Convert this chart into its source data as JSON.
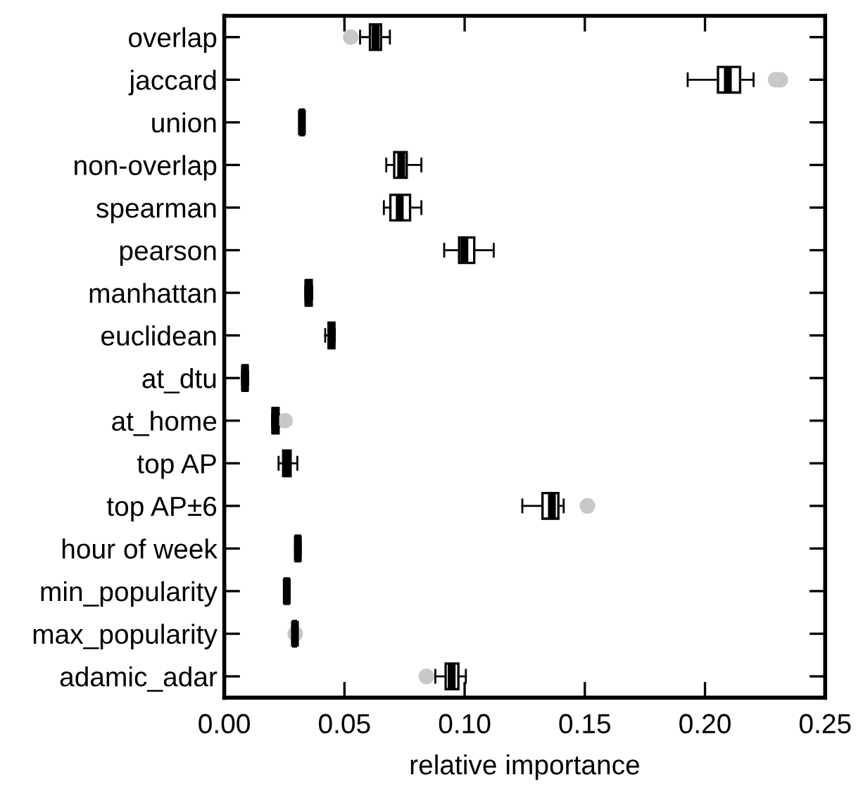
{
  "chart_data": {
    "type": "box",
    "orientation": "horizontal",
    "xlabel": "relative importance",
    "categories": [
      "overlap",
      "jaccard",
      "union",
      "non-overlap",
      "spearman",
      "pearson",
      "manhattan",
      "euclidean",
      "at_dtu",
      "at_home",
      "top AP",
      "top AP±6",
      "hour of week",
      "min_popularity",
      "max_popularity",
      "adamic_adar"
    ],
    "boxes": [
      {
        "low": 0.0565,
        "q1": 0.0606,
        "median": 0.0629,
        "q3": 0.0652,
        "high": 0.0689,
        "outliers": [
          0.0526
        ]
      },
      {
        "low": 0.1928,
        "q1": 0.2054,
        "median": 0.2095,
        "q3": 0.2146,
        "high": 0.2202,
        "outliers": [
          0.2294,
          0.2313
        ]
      },
      {
        "low": 0.0315,
        "q1": 0.0317,
        "median": 0.0323,
        "q3": 0.033,
        "high": 0.0332
      },
      {
        "low": 0.0674,
        "q1": 0.0707,
        "median": 0.0736,
        "q3": 0.0759,
        "high": 0.082
      },
      {
        "low": 0.0664,
        "q1": 0.0691,
        "median": 0.073,
        "q3": 0.0773,
        "high": 0.082
      },
      {
        "low": 0.0915,
        "q1": 0.0977,
        "median": 0.0999,
        "q3": 0.104,
        "high": 0.1121
      },
      {
        "low": 0.0337,
        "q1": 0.0339,
        "median": 0.035,
        "q3": 0.0364,
        "high": 0.0366
      },
      {
        "low": 0.042,
        "q1": 0.0434,
        "median": 0.0446,
        "q3": 0.0458,
        "high": 0.046
      },
      {
        "low": 0.0074,
        "q1": 0.0076,
        "median": 0.0086,
        "q3": 0.0097,
        "high": 0.0099
      },
      {
        "low": 0.0199,
        "q1": 0.0201,
        "median": 0.0212,
        "q3": 0.0226,
        "high": 0.0228,
        "outliers": [
          0.0253
        ]
      },
      {
        "low": 0.0226,
        "q1": 0.0245,
        "median": 0.0261,
        "q3": 0.0276,
        "high": 0.0304
      },
      {
        "low": 0.124,
        "q1": 0.1324,
        "median": 0.1363,
        "q3": 0.139,
        "high": 0.1412,
        "outliers": [
          0.1511
        ]
      },
      {
        "low": 0.0295,
        "q1": 0.0297,
        "median": 0.0306,
        "q3": 0.0316,
        "high": 0.0318
      },
      {
        "low": 0.025,
        "q1": 0.0252,
        "median": 0.026,
        "q3": 0.0268,
        "high": 0.027
      },
      {
        "low": 0.0285,
        "q1": 0.0287,
        "median": 0.0294,
        "q3": 0.0298,
        "high": 0.03,
        "outliers": [
          0.0295
        ]
      },
      {
        "low": 0.0878,
        "q1": 0.0921,
        "median": 0.0946,
        "q3": 0.0974,
        "high": 0.1005,
        "outliers": [
          0.0841
        ]
      }
    ],
    "xlim": [
      0,
      0.25
    ],
    "xticks": [
      {
        "value": 0,
        "label": "0.00"
      },
      {
        "value": 0.05,
        "label": "0.05"
      },
      {
        "value": 0.1,
        "label": "0.10"
      },
      {
        "value": 0.15,
        "label": "0.15"
      },
      {
        "value": 0.2,
        "label": "0.20"
      },
      {
        "value": 0.25,
        "label": "0.25"
      }
    ],
    "grid": false
  }
}
